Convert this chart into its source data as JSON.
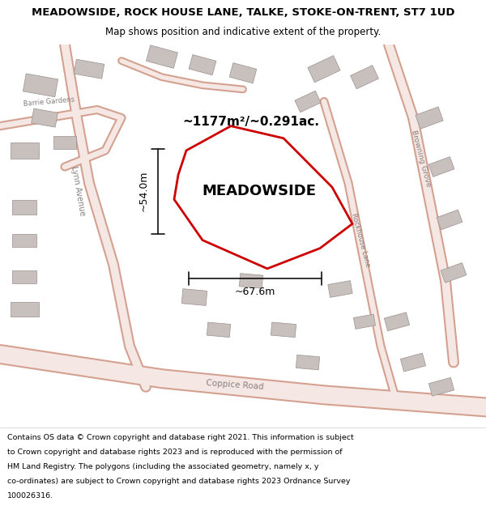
{
  "title_line1": "MEADOWSIDE, ROCK HOUSE LANE, TALKE, STOKE-ON-TRENT, ST7 1UD",
  "title_line2": "Map shows position and indicative extent of the property.",
  "property_label": "MEADOWSIDE",
  "area_label": "~1177m²/~0.291ac.",
  "width_label": "~67.6m",
  "height_label": "~54.0m",
  "footer_lines": [
    "Contains OS data © Crown copyright and database right 2021. This information is subject",
    "to Crown copyright and database rights 2023 and is reproduced with the permission of",
    "HM Land Registry. The polygons (including the associated geometry, namely x, y",
    "co-ordinates) are subject to Crown copyright and database rights 2023 Ordnance Survey",
    "100026316."
  ],
  "map_bg": "#f0ece8",
  "road_color": "#d4a090",
  "building_color": "#c8c0bc",
  "building_edge": "#999090",
  "property_outline_color": "#cc0000",
  "property_fill": "#ffffff",
  "dimension_color": "#111111",
  "title_bg": "#ffffff",
  "footer_bg": "#ffffff",
  "road_label_color": "#888080",
  "road_inner": "#f5e8e4"
}
